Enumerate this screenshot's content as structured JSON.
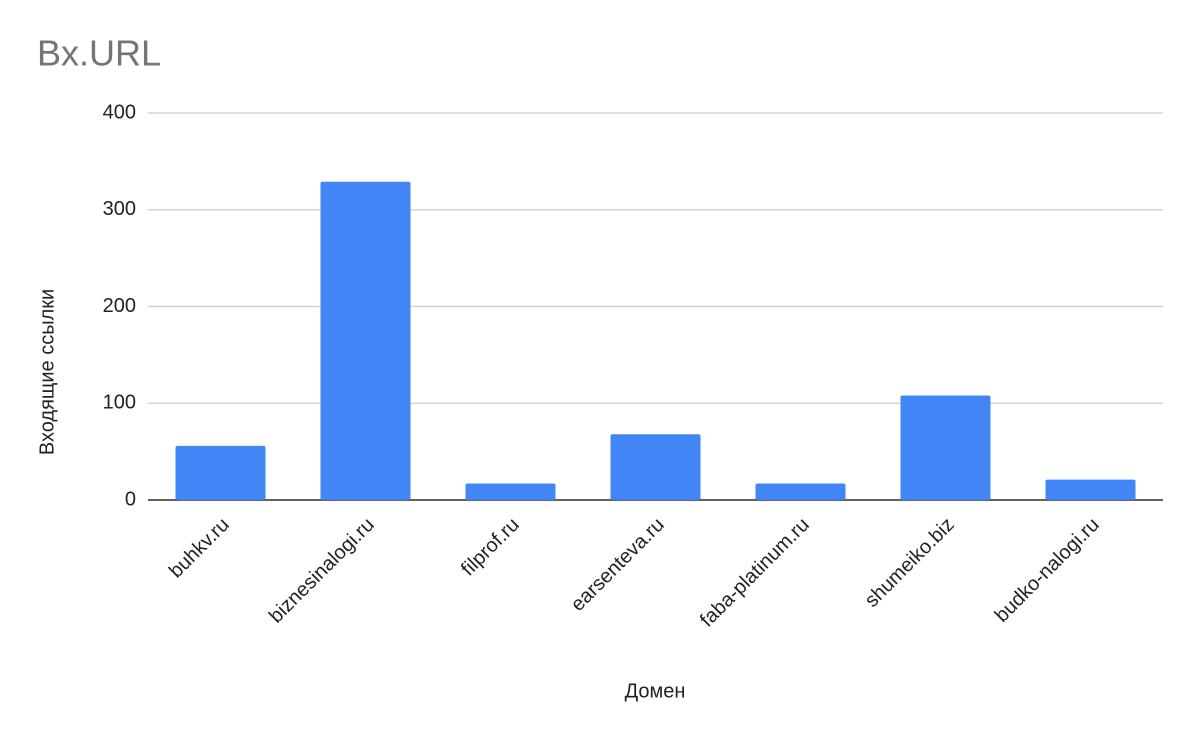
{
  "chart_data": {
    "type": "bar",
    "title": "Bx.URL",
    "x_label": "Домен",
    "y_label": "Входящие ссылки",
    "categories": [
      "buhkv.ru",
      "biznesinalogi.ru",
      "filprof.ru",
      "earsenteva.ru",
      "faba-platinum.ru",
      "shumeiko.biz",
      "budko-nalogi.ru"
    ],
    "values": [
      56,
      329,
      17,
      68,
      17,
      108,
      21
    ],
    "color": "#4285f4",
    "ylim": [
      0,
      400
    ],
    "yticks": [
      0,
      100,
      200,
      300,
      400
    ],
    "grid": true
  }
}
